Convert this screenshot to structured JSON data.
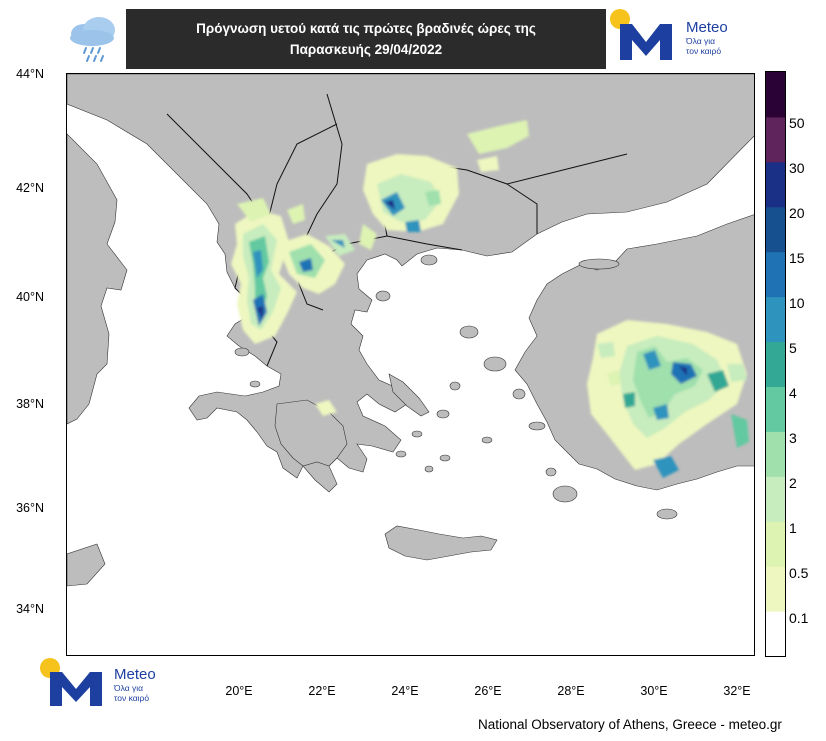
{
  "header": {
    "title_line1": "Πρόγνωση υετού κατά τις πρώτες βραδινές ώρες της",
    "title_line2": "Παρασκευής 29/04/2022"
  },
  "logo": {
    "brand": "Meteo",
    "tagline1": "Όλα για",
    "tagline2": "τον καιρό"
  },
  "icons": {
    "weather": "rain-cloud-icon",
    "logo": "meteo-m-logo-icon"
  },
  "map": {
    "lat_labels": [
      "44°N",
      "42°N",
      "40°N",
      "38°N",
      "36°N",
      "34°N"
    ],
    "lon_labels": [
      "20°E",
      "22°E",
      "24°E",
      "26°E",
      "28°E",
      "30°E",
      "32°E"
    ],
    "land_color": "#bdbdbd",
    "sea_color": "#ffffff"
  },
  "colorbar": {
    "labels": [
      "50",
      "30",
      "20",
      "15",
      "10",
      "5",
      "4",
      "3",
      "2",
      "1",
      "0.5",
      "0.1"
    ],
    "colors": [
      "#ffffff",
      "#eef7c0",
      "#ddf3b2",
      "#c7ecbe",
      "#9fe0ad",
      "#62c9a1",
      "#33a894",
      "#2e93bd",
      "#1f72b4",
      "#17508f",
      "#1a2f86",
      "#60245c",
      "#2a0236"
    ]
  },
  "footer": {
    "credit": "National Observatory of Athens, Greece - meteo.gr"
  }
}
